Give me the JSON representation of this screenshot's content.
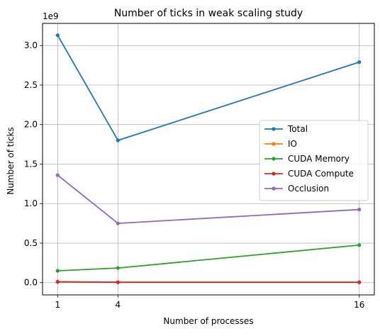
{
  "chart_data": {
    "type": "line",
    "title": "Number of ticks in weak scaling study",
    "xlabel": "Number of processes",
    "ylabel": "Number of ticks",
    "y_scale_label": "1e9",
    "x": [
      1,
      4,
      16
    ],
    "xlim": [
      0.25,
      16.75
    ],
    "ylim": [
      -0.155,
      3.28
    ],
    "x_ticks": [
      1,
      4,
      16
    ],
    "x_tick_labels": [
      "1",
      "4",
      "16"
    ],
    "y_ticks": [
      0.0,
      0.5,
      1.0,
      1.5,
      2.0,
      2.5,
      3.0
    ],
    "y_tick_labels": [
      "0.0",
      "0.5",
      "1.0",
      "1.5",
      "2.0",
      "2.5",
      "3.0"
    ],
    "grid": true,
    "legend_position": "center-right",
    "marker": "circle",
    "series": [
      {
        "name": "Total",
        "color": "#1f77b4",
        "values": [
          3.13,
          1.8,
          2.79
        ]
      },
      {
        "name": "IO",
        "color": "#ff7f0e",
        "values": [
          0.012,
          0.006,
          0.006
        ]
      },
      {
        "name": "CUDA Memory",
        "color": "#2ca02c",
        "values": [
          0.15,
          0.185,
          0.475
        ]
      },
      {
        "name": "CUDA Compute",
        "color": "#d62728",
        "values": [
          0.01,
          0.004,
          0.004
        ]
      },
      {
        "name": "Occlusion",
        "color": "#9467bd",
        "values": [
          1.36,
          0.75,
          0.925
        ]
      }
    ]
  }
}
